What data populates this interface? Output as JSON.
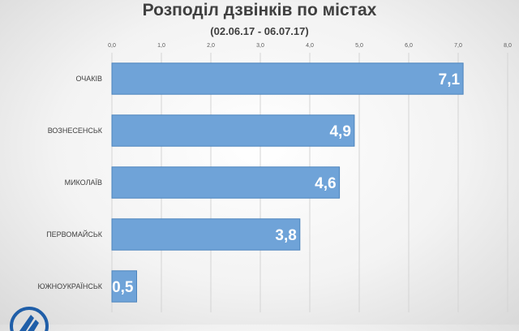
{
  "chart_data": {
    "type": "bar",
    "orientation": "horizontal",
    "title": "Розподіл дзвінків по містах",
    "subtitle": "(02.06.17 - 06.07.17)",
    "categories": [
      "ОЧАКІВ",
      "ВОЗНЕСЕНСЬК",
      "МИКОЛАЇВ",
      "ПЕРВОМАЙСЬК",
      "ЮЖНОУКРАЇНСЬК"
    ],
    "values": [
      7.1,
      4.9,
      4.6,
      3.8,
      0.5
    ],
    "value_labels": [
      "7,1",
      "4,9",
      "4,6",
      "3,8",
      "0,5"
    ],
    "xlim": [
      0,
      8
    ],
    "ticks": [
      "0,0",
      "1,0",
      "2,0",
      "3,0",
      "4,0",
      "5,0",
      "6,0",
      "7,0",
      "8,0"
    ],
    "axis_position": "top",
    "grid": true,
    "colors": {
      "bar": "#6fa3d8",
      "bar_edge": "#4d84bd",
      "grid": "#d4d4d4",
      "text": "#404040",
      "label": "#ffffff"
    }
  }
}
